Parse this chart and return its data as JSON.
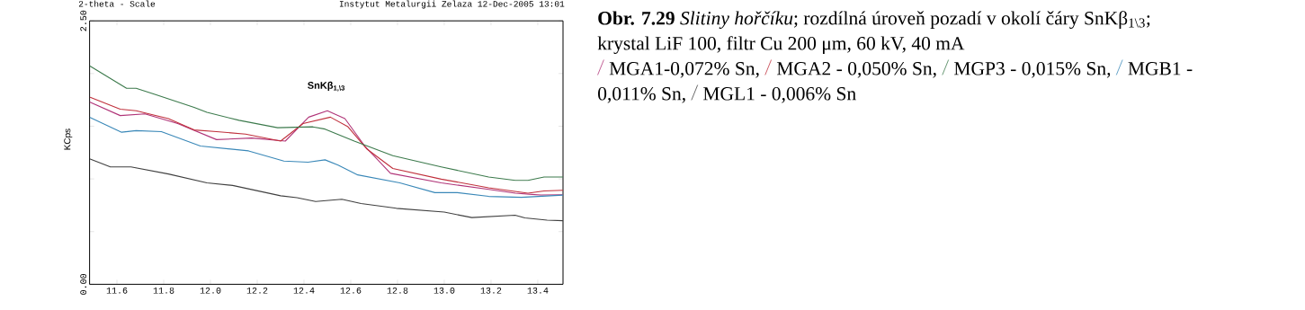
{
  "chart_data": {
    "type": "line",
    "xlabel": null,
    "ylabel": "KCps",
    "xlim": [
      11.483,
      13.508
    ],
    "ylim": [
      0,
      2.5
    ],
    "xticks": [
      {
        "value": 11.6,
        "label": "11.6"
      },
      {
        "value": 11.8,
        "label": "11.8"
      },
      {
        "value": 12.0,
        "label": "12.0"
      },
      {
        "value": 12.2,
        "label": "12.2"
      },
      {
        "value": 12.4,
        "label": "12.4"
      },
      {
        "value": 12.6,
        "label": "12.6"
      },
      {
        "value": 12.8,
        "label": "12.8"
      },
      {
        "value": 13.0,
        "label": "13.0"
      },
      {
        "value": 13.2,
        "label": "13.2"
      },
      {
        "value": 13.4,
        "label": "13.4"
      }
    ],
    "yticks": [
      {
        "value": 0,
        "label": "0.00"
      },
      {
        "value": 0.5,
        "label": null
      },
      {
        "value": 1.0,
        "label": null
      },
      {
        "value": 1.5,
        "label": null
      },
      {
        "value": 2.0,
        "label": null
      },
      {
        "value": 2.5,
        "label": "2.50"
      }
    ],
    "legend": "right",
    "marker": "none",
    "line_style": "solid",
    "grid": false,
    "annotations": [
      "2-theta  - Scale",
      "Instytut Metalurgii Zelaza 12-Dec-2005 13:01",
      "SnKβ$_{1,\\3}$",
      "**Obr. 7.29** *Slitiny hořčíku*; rozdílná úroveň pozadí v okolí čáry SnKβ$_{1\\3}$;",
      "krystal LiF 100, filtr Cu 200 μm, 60 kV, 40 mA"
    ],
    "series": [
      {
        "name": "MGA1-0,072% Sn,",
        "color": "#b03478",
        "x": [
          11.483,
          11.614,
          11.72,
          11.86,
          12.026,
          12.177,
          12.32,
          12.42,
          12.5,
          12.575,
          12.66,
          12.77,
          12.987,
          13.19,
          13.304,
          13.413,
          13.508
        ],
        "values": [
          1.729,
          1.601,
          1.617,
          1.525,
          1.373,
          1.388,
          1.359,
          1.586,
          1.647,
          1.572,
          1.312,
          1.053,
          0.962,
          0.901,
          0.864,
          0.846,
          0.849
        ]
      },
      {
        "name": "MGA2 - 0,050% Sn,",
        "color": "#c0303c",
        "x": [
          11.483,
          11.614,
          11.682,
          11.82,
          11.93,
          12.026,
          12.15,
          12.3,
          12.396,
          12.513,
          12.588,
          12.67,
          12.78,
          12.987,
          13.19,
          13.358,
          13.427,
          13.508
        ],
        "values": [
          1.777,
          1.662,
          1.647,
          1.572,
          1.465,
          1.449,
          1.425,
          1.359,
          1.525,
          1.586,
          1.495,
          1.282,
          1.099,
          0.998,
          0.916,
          0.864,
          0.886,
          0.892
        ]
      },
      {
        "name": "MGP3 - 0,015% Sn,",
        "color": "#3c7a4c",
        "x": [
          11.483,
          11.641,
          11.682,
          11.765,
          11.93,
          11.985,
          12.122,
          12.287,
          12.438,
          12.49,
          12.615,
          12.78,
          12.987,
          13.19,
          13.304,
          13.358,
          13.427,
          13.508
        ],
        "values": [
          2.073,
          1.86,
          1.86,
          1.8,
          1.678,
          1.632,
          1.556,
          1.486,
          1.494,
          1.473,
          1.359,
          1.221,
          1.114,
          1.018,
          0.986,
          0.986,
          1.018,
          1.018
        ]
      },
      {
        "name": "MGB1 - 0,011% Sn,",
        "color": "#3a88b8",
        "x": [
          11.483,
          11.62,
          11.682,
          11.79,
          11.957,
          12.163,
          12.314,
          12.417,
          12.49,
          12.546,
          12.63,
          12.81,
          12.96,
          13.056,
          13.19,
          13.33,
          13.508
        ],
        "values": [
          1.586,
          1.443,
          1.458,
          1.449,
          1.312,
          1.266,
          1.169,
          1.159,
          1.181,
          1.13,
          1.038,
          0.962,
          0.87,
          0.87,
          0.834,
          0.825,
          0.846
        ]
      },
      {
        "name": "MGL1 - 0,006% Sn",
        "color": "#404040",
        "x": [
          11.483,
          11.572,
          11.66,
          11.82,
          11.985,
          12.095,
          12.3,
          12.37,
          12.45,
          12.562,
          12.644,
          12.795,
          13.0,
          13.118,
          13.303,
          13.345,
          13.44,
          13.508
        ],
        "values": [
          1.19,
          1.114,
          1.114,
          1.047,
          0.962,
          0.938,
          0.84,
          0.822,
          0.785,
          0.807,
          0.767,
          0.721,
          0.685,
          0.633,
          0.655,
          0.63,
          0.609,
          0.603
        ]
      }
    ]
  }
}
